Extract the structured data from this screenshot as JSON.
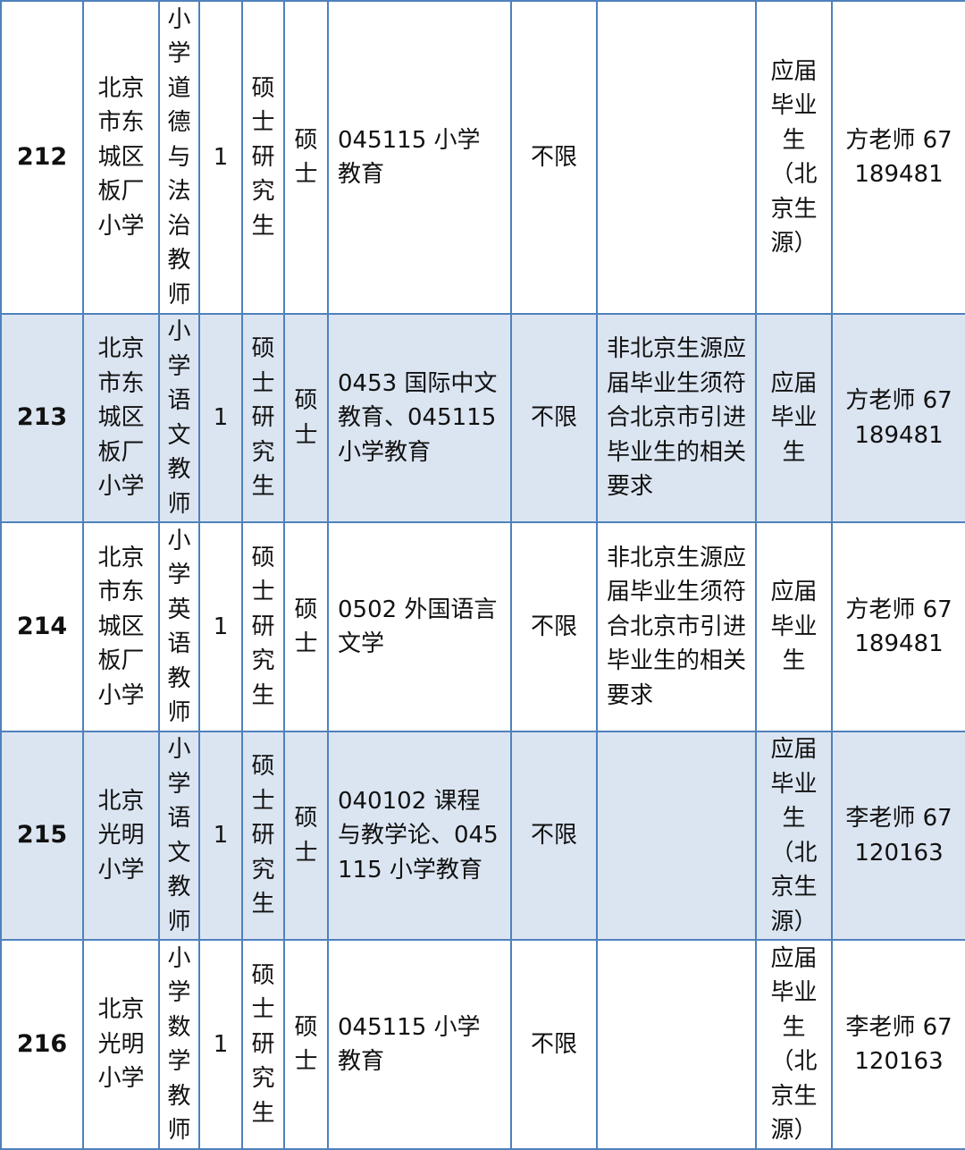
{
  "colors": {
    "border": "#4f81bd",
    "alt_row": "#dbe5f1"
  },
  "rows": [
    {
      "no": "212",
      "unit": "北京市东城区板厂小学",
      "position": "小学道德与法治教师",
      "count": "1",
      "education": "硕士研究生",
      "degree": "硕士",
      "major": "045115 小学教育",
      "political": "不限",
      "other": "",
      "source": "应届毕业生（北京生源）",
      "contact": "方老师 67189481"
    },
    {
      "no": "213",
      "unit": "北京市东城区板厂小学",
      "position": "小学语文教师",
      "count": "1",
      "education": "硕士研究生",
      "degree": "硕士",
      "major": "0453 国际中文教育、045115 小学教育",
      "political": "不限",
      "other": "非北京生源应届毕业生须符合北京市引进毕业生的相关要求",
      "source": "应届毕业生",
      "contact": "方老师 67189481"
    },
    {
      "no": "214",
      "unit": "北京市东城区板厂小学",
      "position": "小学英语教师",
      "count": "1",
      "education": "硕士研究生",
      "degree": "硕士",
      "major": "0502 外国语言文学",
      "political": "不限",
      "other": "非北京生源应届毕业生须符合北京市引进毕业生的相关要求",
      "source": "应届毕业生",
      "contact": "方老师 67189481"
    },
    {
      "no": "215",
      "unit": "北京光明小学",
      "position": "小学语文教师",
      "count": "1",
      "education": "硕士研究生",
      "degree": "硕士",
      "major": "040102 课程与教学论、045115 小学教育",
      "political": "不限",
      "other": "",
      "source": "应届毕业生（北京生源）",
      "contact": "李老师 67120163"
    },
    {
      "no": "216",
      "unit": "北京光明小学",
      "position": "小学数学教师",
      "count": "1",
      "education": "硕士研究生",
      "degree": "硕士",
      "major": "045115 小学教育",
      "political": "不限",
      "other": "",
      "source": "应届毕业生（北京生源）",
      "contact": "李老师 67120163"
    }
  ]
}
